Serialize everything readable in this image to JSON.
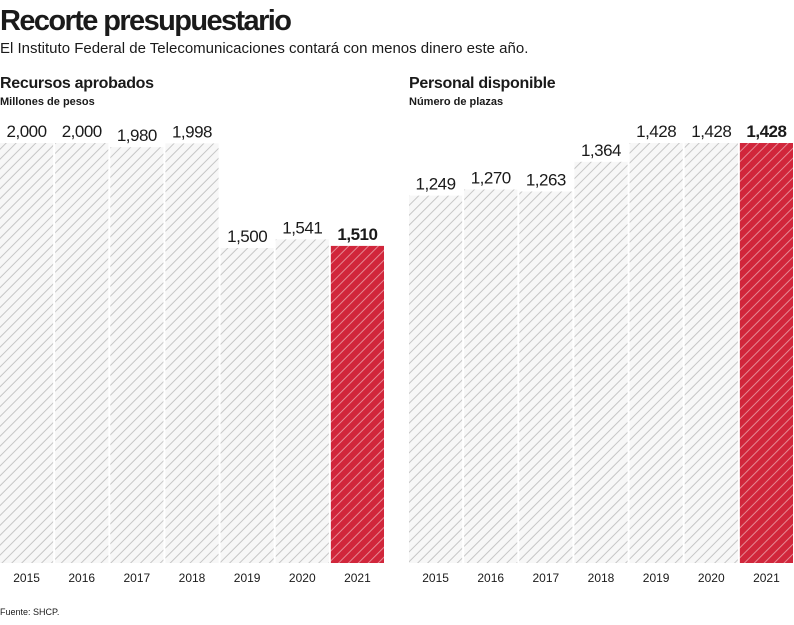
{
  "title": "Recorte presupuestario",
  "subtitle": "El Instituto Federal de Telecomunicaciones contará con menos dinero este año.",
  "source": "Fuente: SHCP.",
  "chart_data": [
    {
      "type": "bar",
      "title": "Recursos aprobados",
      "subtitle": "Millones de pesos",
      "categories": [
        "2015",
        "2016",
        "2017",
        "2018",
        "2019",
        "2020",
        "2021"
      ],
      "values": [
        2000,
        2000,
        1980,
        1998,
        1500,
        1541,
        1510
      ],
      "value_labels": [
        "2,000",
        "2,000",
        "1,980",
        "1,998",
        "1,500",
        "1,541",
        "1,510"
      ],
      "colors": [
        "#f7f7f7",
        "#f7f7f7",
        "#f7f7f7",
        "#f7f7f7",
        "#f7f7f7",
        "#f7f7f7",
        "#d1263b"
      ],
      "ylim": [
        0,
        2000
      ]
    },
    {
      "type": "bar",
      "title": "Personal disponible",
      "subtitle": "Número de plazas",
      "categories": [
        "2015",
        "2016",
        "2017",
        "2018",
        "2019",
        "2020",
        "2021"
      ],
      "values": [
        1249,
        1270,
        1263,
        1364,
        1428,
        1428,
        1428
      ],
      "value_labels": [
        "1,249",
        "1,270",
        "1,263",
        "1,364",
        "1,428",
        "1,428",
        "1,428"
      ],
      "colors": [
        "#f7f7f7",
        "#f7f7f7",
        "#f7f7f7",
        "#f7f7f7",
        "#f7f7f7",
        "#f7f7f7",
        "#d1263b"
      ],
      "ylim": [
        0,
        1428
      ]
    }
  ]
}
